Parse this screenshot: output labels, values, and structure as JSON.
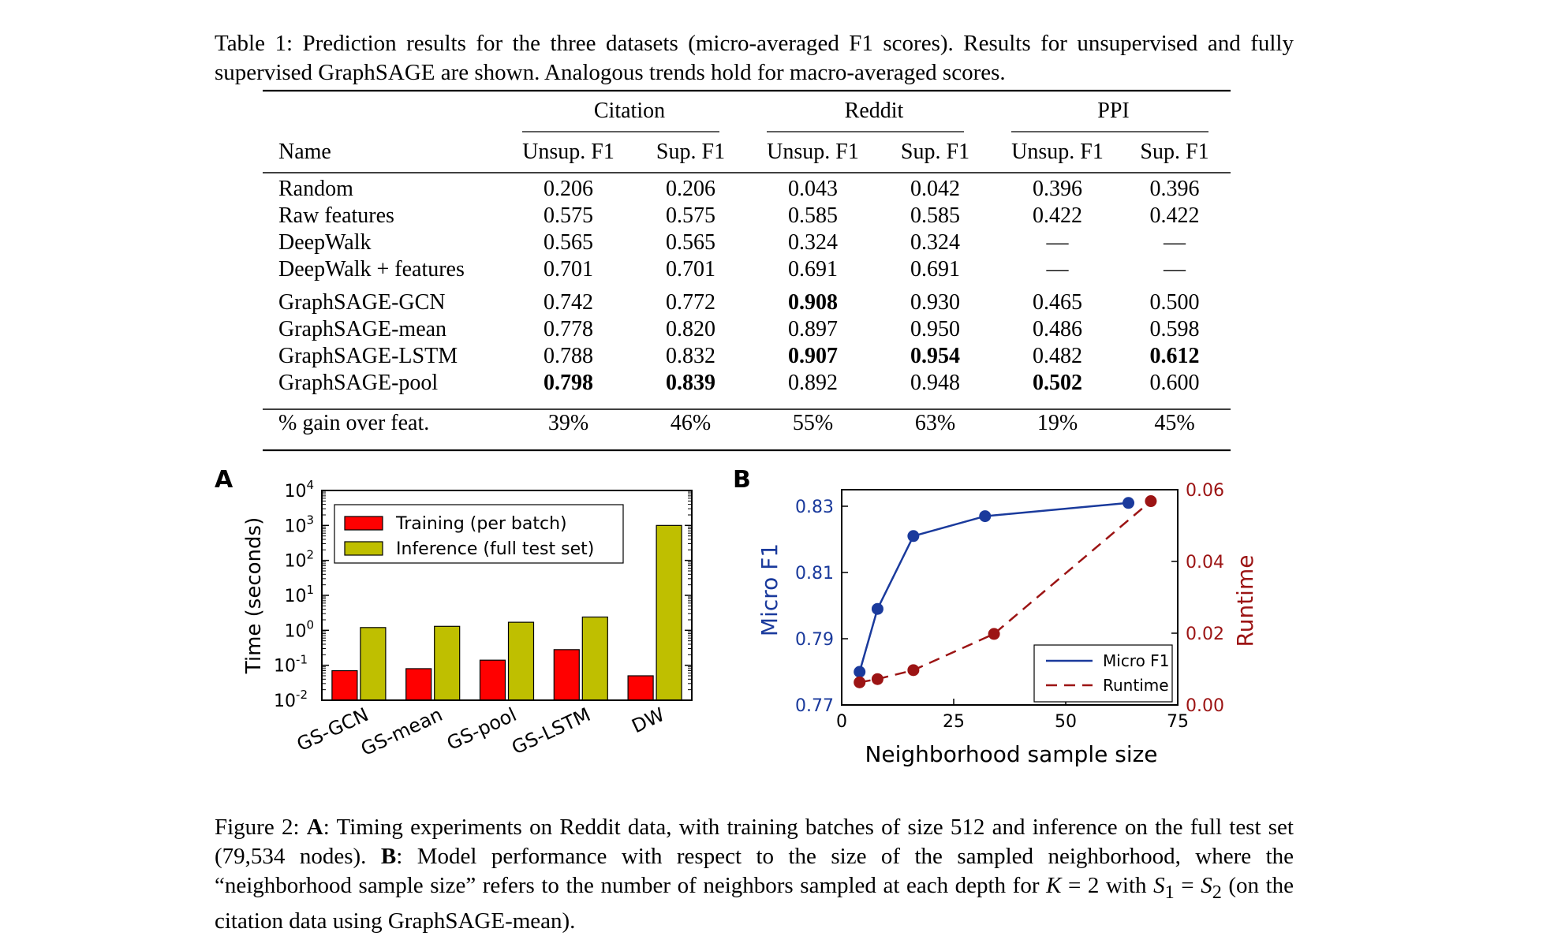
{
  "table": {
    "caption_label": "Table 1:",
    "caption_text": "Prediction results for the three datasets (micro-averaged F1 scores). Results for unsupervised and fully supervised GraphSAGE are shown. Analogous trends hold for macro-averaged scores.",
    "group_headers": [
      "Citation",
      "Reddit",
      "PPI"
    ],
    "column_headers": [
      "Name",
      "Unsup. F1",
      "Sup. F1",
      "Unsup. F1",
      "Sup. F1",
      "Unsup. F1",
      "Sup. F1"
    ],
    "rows": [
      {
        "name": "Random",
        "values": [
          "0.206",
          "0.206",
          "0.043",
          "0.042",
          "0.396",
          "0.396"
        ],
        "bold": []
      },
      {
        "name": "Raw features",
        "values": [
          "0.575",
          "0.575",
          "0.585",
          "0.585",
          "0.422",
          "0.422"
        ],
        "bold": []
      },
      {
        "name": "DeepWalk",
        "values": [
          "0.565",
          "0.565",
          "0.324",
          "0.324",
          "—",
          "—"
        ],
        "bold": []
      },
      {
        "name": "DeepWalk + features",
        "values": [
          "0.701",
          "0.701",
          "0.691",
          "0.691",
          "—",
          "—"
        ],
        "bold": []
      },
      {
        "name": "GraphSAGE-GCN",
        "values": [
          "0.742",
          "0.772",
          "0.908",
          "0.930",
          "0.465",
          "0.500"
        ],
        "bold": [
          2
        ]
      },
      {
        "name": "GraphSAGE-mean",
        "values": [
          "0.778",
          "0.820",
          "0.897",
          "0.950",
          "0.486",
          "0.598"
        ],
        "bold": []
      },
      {
        "name": "GraphSAGE-LSTM",
        "values": [
          "0.788",
          "0.832",
          "0.907",
          "0.954",
          "0.482",
          "0.612"
        ],
        "bold": [
          2,
          3,
          5
        ]
      },
      {
        "name": "GraphSAGE-pool",
        "values": [
          "0.798",
          "0.839",
          "0.892",
          "0.948",
          "0.502",
          "0.600"
        ],
        "bold": [
          0,
          1,
          4
        ]
      }
    ],
    "gain_row": {
      "name": "% gain over feat.",
      "values": [
        "39%",
        "46%",
        "55%",
        "63%",
        "19%",
        "45%"
      ]
    }
  },
  "figure": {
    "caption_label": "Figure 2:",
    "caption_html": "<b>A</b>: Timing experiments on Reddit data, with training batches of size 512 and inference on the full test set (79,534 nodes). <b>B</b>: Model performance with respect to the size of the sampled neighborhood, where the “neighborhood sample size” refers to the number of neighbors sampled at each depth for <i>K</i> = 2 with <i>S</i><sub>1</sub> = <i>S</i><sub>2</sub> (on the citation data using GraphSAGE-mean)."
  },
  "chart_data": [
    {
      "panel_label": "A",
      "type": "bar",
      "ylabel": "Time (seconds)",
      "yscale": "log",
      "ylim": [
        0.01,
        10000
      ],
      "yticks": [
        "10^-2",
        "10^-1",
        "10^0",
        "10^1",
        "10^2",
        "10^3",
        "10^4"
      ],
      "categories": [
        "GS-GCN",
        "GS-mean",
        "GS-pool",
        "GS-LSTM",
        "DW"
      ],
      "legend_position": "upper-left",
      "series": [
        {
          "name": "Training (per batch)",
          "color": "#ff0000",
          "values": [
            0.07,
            0.08,
            0.14,
            0.28,
            0.05
          ]
        },
        {
          "name": "Inference (full test set)",
          "color": "#bfbf00",
          "values": [
            1.2,
            1.3,
            1.7,
            2.4,
            1000
          ]
        }
      ]
    },
    {
      "panel_label": "B",
      "type": "line",
      "xlabel": "Neighborhood sample size",
      "ylabel_left": "Micro F1",
      "ylabel_right": "Runtime",
      "xlim": [
        0,
        75
      ],
      "xticks": [
        0,
        25,
        50,
        75
      ],
      "ylim_left": [
        0.77,
        0.835
      ],
      "yticks_left": [
        0.77,
        0.79,
        0.81,
        0.83
      ],
      "ylim_right": [
        0.0,
        0.06
      ],
      "yticks_right": [
        "0.00",
        "0.02",
        "0.04",
        "0.06"
      ],
      "legend_position": "lower-right",
      "series": [
        {
          "name": "Micro F1",
          "axis": "left",
          "style": "solid",
          "color": "#1a3a9c",
          "x": [
            4,
            8,
            16,
            32,
            64
          ],
          "y": [
            0.78,
            0.799,
            0.821,
            0.827,
            0.831
          ]
        },
        {
          "name": "Runtime",
          "axis": "right",
          "style": "dashed",
          "color": "#9c1414",
          "x": [
            4,
            8,
            16,
            34,
            69
          ],
          "y": [
            0.0063,
            0.0072,
            0.0097,
            0.0198,
            0.0568
          ]
        }
      ]
    }
  ]
}
